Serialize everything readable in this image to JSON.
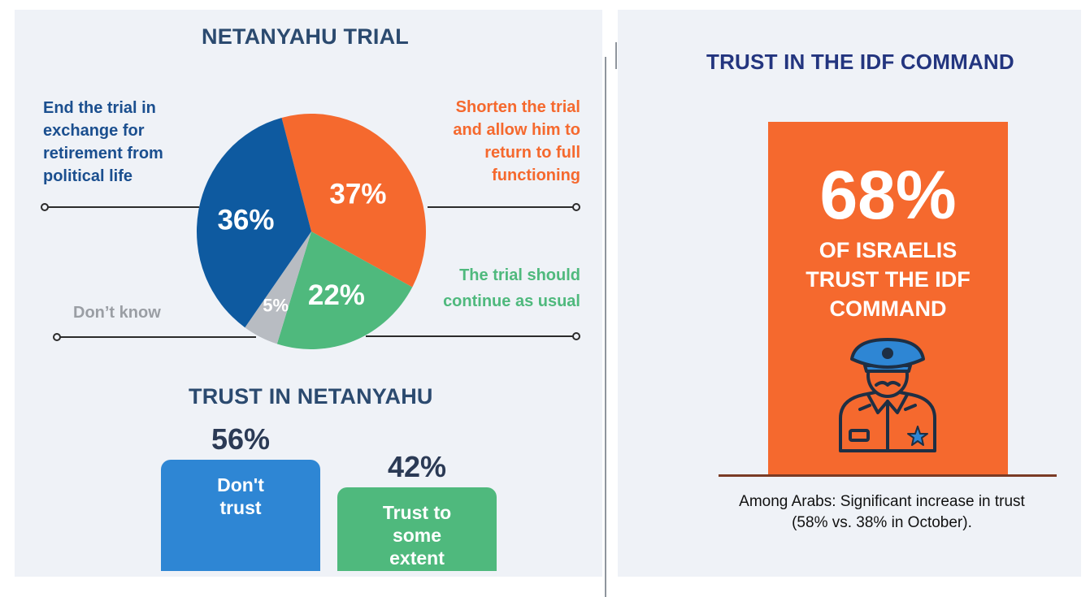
{
  "colors": {
    "blue": "#0e5aa0",
    "orange": "#f5692e",
    "green": "#4fb97d",
    "gray": "#b8bcc2",
    "title": "#2b4a6f",
    "idf_title": "#23357f"
  },
  "trial": {
    "title": "NETANYAHU TRIAL",
    "end_label": "End the trial in\nexchange for\nretirement from\npolitical life",
    "shorten_label": "Shorten the trial\nand allow him to\nreturn to full\nfunctioning",
    "continue_label": "The trial should\ncontinue as usual",
    "dontknow_label": "Don’t know"
  },
  "trust_netanyahu": {
    "title": "TRUST IN NETANYAHU"
  },
  "idf": {
    "title": "TRUST IN  THE  IDF COMMAND",
    "big_value": "68%",
    "card_text": "OF ISRAELIS\nTRUST THE IDF\nCOMMAND",
    "officer_icon": "military-officer-icon",
    "note": "Among Arabs: Significant increase in trust\n(58% vs. 38% in October)."
  },
  "chart_data": [
    {
      "type": "pie",
      "title": "NETANYAHU TRIAL",
      "slices": [
        {
          "label": "Shorten the trial and allow him to return to full functioning",
          "value": 37,
          "display": "37%",
          "color": "#f5692e"
        },
        {
          "label": "The trial should continue as usual",
          "value": 22,
          "display": "22%",
          "color": "#4fb97d"
        },
        {
          "label": "Don’t know",
          "value": 5,
          "display": "5%",
          "color": "#b8bcc2"
        },
        {
          "label": "End the trial in exchange for retirement from political life",
          "value": 36,
          "display": "36%",
          "color": "#0e5aa0"
        }
      ]
    },
    {
      "type": "bar",
      "title": "TRUST IN NETANYAHU",
      "categories": [
        "Don't\ntrust",
        "Trust to\nsome\nextent"
      ],
      "values": [
        56,
        42
      ],
      "labels": [
        "56%",
        "42%"
      ],
      "colors": [
        "#2e86d4",
        "#4fb97d"
      ]
    }
  ]
}
